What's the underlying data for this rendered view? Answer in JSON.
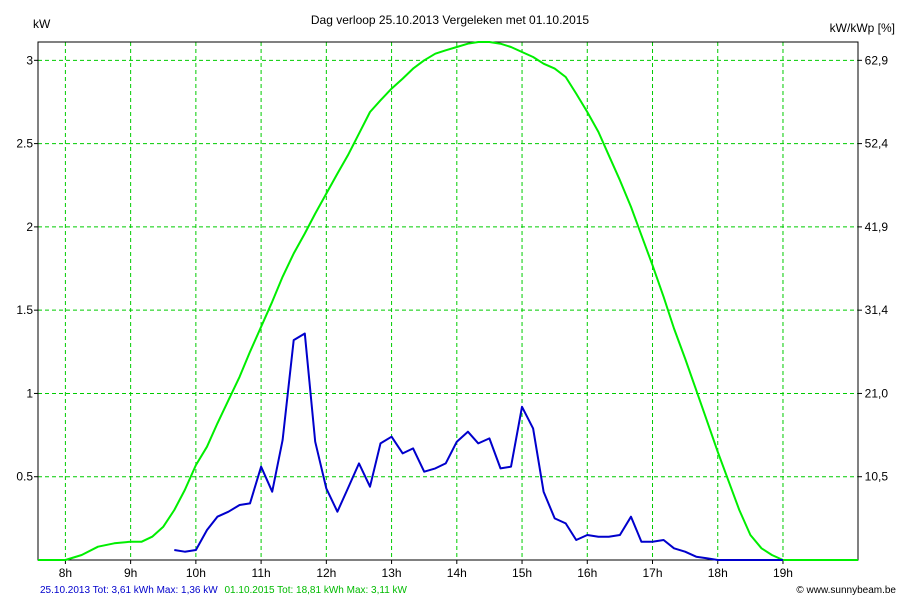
{
  "chart_data": {
    "type": "line",
    "title": "Dag  verloop 25.10.2013   Vergeleken met 01.10.2015",
    "ylabel_left": "kW",
    "ylabel_right": "kW/kWp [%]",
    "x_ticks": [
      "8h",
      "9h",
      "10h",
      "11h",
      "12h",
      "13h",
      "14h",
      "15h",
      "16h",
      "17h",
      "18h",
      "19h"
    ],
    "x_range": [
      7.58,
      20.15
    ],
    "y_ticks_left": [
      "0.5",
      "1",
      "1.5",
      "2",
      "2.5",
      "3"
    ],
    "y_ticks_right": [
      "10,5",
      "21,0",
      "31,4",
      "41,9",
      "52,4",
      "62,9"
    ],
    "ylim": [
      0,
      3.11
    ],
    "grid": true,
    "series": [
      {
        "name": "01.10.2015",
        "color": "#00ee00",
        "x": [
          7.58,
          8.0,
          8.25,
          8.5,
          8.75,
          9.0,
          9.17,
          9.33,
          9.5,
          9.67,
          9.83,
          10.0,
          10.17,
          10.33,
          10.5,
          10.67,
          10.83,
          11.0,
          11.17,
          11.33,
          11.5,
          11.67,
          11.83,
          12.0,
          12.17,
          12.33,
          12.5,
          12.67,
          12.83,
          13.0,
          13.17,
          13.33,
          13.5,
          13.67,
          13.83,
          14.0,
          14.17,
          14.33,
          14.5,
          14.67,
          14.83,
          15.0,
          15.17,
          15.33,
          15.5,
          15.67,
          15.83,
          16.0,
          16.17,
          16.33,
          16.5,
          16.67,
          16.83,
          17.0,
          17.17,
          17.33,
          17.5,
          17.67,
          17.83,
          18.0,
          18.17,
          18.33,
          18.5,
          18.67,
          18.83,
          19.0,
          19.17,
          19.33,
          19.5,
          20.15
        ],
        "values": [
          0.0,
          0.0,
          0.03,
          0.08,
          0.1,
          0.11,
          0.11,
          0.14,
          0.2,
          0.3,
          0.42,
          0.57,
          0.68,
          0.82,
          0.96,
          1.1,
          1.25,
          1.4,
          1.55,
          1.7,
          1.84,
          1.96,
          2.08,
          2.2,
          2.32,
          2.43,
          2.56,
          2.69,
          2.76,
          2.83,
          2.89,
          2.95,
          3.0,
          3.04,
          3.06,
          3.08,
          3.1,
          3.11,
          3.11,
          3.1,
          3.08,
          3.05,
          3.02,
          2.98,
          2.95,
          2.9,
          2.8,
          2.69,
          2.57,
          2.43,
          2.28,
          2.12,
          1.95,
          1.77,
          1.58,
          1.39,
          1.21,
          1.02,
          0.84,
          0.65,
          0.47,
          0.3,
          0.15,
          0.07,
          0.03,
          0.0,
          0.0,
          0.0,
          0.0,
          0.0
        ]
      },
      {
        "name": "25.10.2013",
        "color": "#0000cc",
        "x": [
          9.67,
          9.83,
          10.0,
          10.17,
          10.33,
          10.5,
          10.67,
          10.83,
          11.0,
          11.17,
          11.33,
          11.5,
          11.67,
          11.83,
          12.0,
          12.17,
          12.33,
          12.5,
          12.67,
          12.83,
          13.0,
          13.17,
          13.33,
          13.5,
          13.67,
          13.83,
          14.0,
          14.17,
          14.33,
          14.5,
          14.67,
          14.83,
          15.0,
          15.17,
          15.33,
          15.5,
          15.67,
          15.83,
          16.0,
          16.17,
          16.33,
          16.5,
          16.67,
          16.83,
          17.0,
          17.17,
          17.33,
          17.5,
          17.67,
          17.83,
          18.0,
          18.17,
          18.33,
          18.5,
          18.67,
          19.0
        ],
        "values": [
          0.06,
          0.05,
          0.06,
          0.18,
          0.26,
          0.29,
          0.33,
          0.34,
          0.56,
          0.41,
          0.72,
          1.32,
          1.36,
          0.71,
          0.43,
          0.29,
          0.43,
          0.58,
          0.44,
          0.7,
          0.74,
          0.64,
          0.67,
          0.53,
          0.55,
          0.58,
          0.71,
          0.77,
          0.7,
          0.73,
          0.55,
          0.56,
          0.92,
          0.79,
          0.41,
          0.25,
          0.22,
          0.12,
          0.15,
          0.14,
          0.14,
          0.15,
          0.26,
          0.11,
          0.11,
          0.12,
          0.07,
          0.05,
          0.02,
          0.01,
          0.0,
          0.0,
          0.0,
          0.0,
          0.0,
          0.0
        ]
      }
    ]
  },
  "footer": {
    "blue_text": "25.10.2013 Tot: 3,61 kWh Max: 1,36 kW",
    "green_text": "01.10.2015 Tot: 18,81 kWh Max: 3,11 kW",
    "credit": "© www.sunnybeam.be",
    "blue_color": "#0000cc",
    "green_color": "#00bb00"
  }
}
